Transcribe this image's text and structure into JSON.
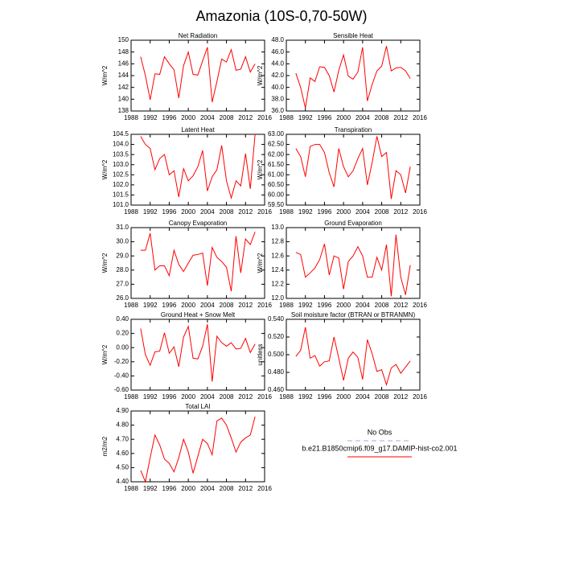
{
  "title": "Amazonia (10S-0,70-50W)",
  "legend": [
    {
      "name": "No Obs",
      "color": "#a8a8d0",
      "dash": true
    },
    {
      "name": "b.e21.B1850cmip6.f09_g17.DAMIP-hist-co2.001",
      "color": "#ff0000",
      "dash": false
    }
  ],
  "chart_data": [
    {
      "type": "line",
      "title": "Net Radiation",
      "y_label": "W/m^2",
      "color": "#ff0000",
      "x": [
        1990,
        1991,
        1992,
        1993,
        1994,
        1995,
        1996,
        1997,
        1998,
        1999,
        2000,
        2001,
        2002,
        2003,
        2004,
        2005,
        2006,
        2007,
        2008,
        2009,
        2010,
        2011,
        2012,
        2013,
        2014
      ],
      "values": [
        147.2,
        144,
        139.9,
        144.3,
        144.2,
        147.2,
        146,
        145,
        140.2,
        145.7,
        148,
        144.2,
        144.1,
        146.5,
        148.8,
        139.5,
        143,
        146.8,
        146.3,
        148.4,
        144.9,
        145.1,
        147.2,
        144.6,
        146
      ],
      "xlim": [
        1988,
        2016
      ],
      "xticks": [
        1988,
        1992,
        1996,
        2000,
        2004,
        2008,
        2012,
        2016
      ],
      "ylim": [
        138,
        150
      ],
      "yticks": [
        138,
        140,
        142,
        144,
        146,
        148,
        150
      ]
    },
    {
      "type": "line",
      "title": "Sensible Heat",
      "y_label": "W/m^2",
      "color": "#ff0000",
      "x": [
        1990,
        1991,
        1992,
        1993,
        1994,
        1995,
        1996,
        1997,
        1998,
        1999,
        2000,
        2001,
        2002,
        2003,
        2004,
        2005,
        2006,
        2007,
        2008,
        2009,
        2010,
        2011,
        2012,
        2013,
        2014
      ],
      "values": [
        42.4,
        40,
        36.5,
        41.6,
        41,
        43.5,
        43.4,
        42,
        39.2,
        42.9,
        45.5,
        41.9,
        41.4,
        42.6,
        46.8,
        37.7,
        40.5,
        42.8,
        43.6,
        47,
        42.8,
        43.3,
        43.4,
        42.8,
        41.5
      ],
      "xlim": [
        1988,
        2016
      ],
      "xticks": [
        1988,
        1992,
        1996,
        2000,
        2004,
        2008,
        2012,
        2016
      ],
      "ylim": [
        36,
        48
      ],
      "yticks": [
        {
          "value": 36,
          "label": "36.0"
        },
        {
          "value": 38,
          "label": "38.0"
        },
        {
          "value": 40,
          "label": "40.0"
        },
        {
          "value": 42,
          "label": "42.0"
        },
        {
          "value": 44,
          "label": "44.0"
        },
        {
          "value": 46,
          "label": "46.0"
        },
        {
          "value": 48,
          "label": "48.0"
        }
      ]
    },
    {
      "type": "line",
      "title": "Latent Heat",
      "y_label": "W/m^2",
      "color": "#ff0000",
      "x": [
        1990,
        1991,
        1992,
        1993,
        1994,
        1995,
        1996,
        1997,
        1998,
        1999,
        2000,
        2001,
        2002,
        2003,
        2004,
        2005,
        2006,
        2007,
        2008,
        2009,
        2010,
        2011,
        2012,
        2013,
        2014
      ],
      "values": [
        104.4,
        104,
        103.8,
        102.75,
        103.3,
        103.5,
        102.5,
        102.7,
        101.4,
        102.8,
        102.2,
        102.45,
        102.9,
        103.7,
        101.7,
        102.4,
        102.75,
        103.95,
        102.2,
        101.35,
        102.2,
        101.95,
        103.55,
        101.8,
        104.5
      ],
      "xlim": [
        1988,
        2016
      ],
      "xticks": [
        1988,
        1992,
        1996,
        2000,
        2004,
        2008,
        2012,
        2016
      ],
      "ylim": [
        101,
        104.5
      ],
      "yticks": [
        {
          "value": 101,
          "label": "101.0"
        },
        {
          "value": 101.5,
          "label": "101.5"
        },
        {
          "value": 102,
          "label": "102.0"
        },
        {
          "value": 102.5,
          "label": "102.5"
        },
        {
          "value": 103,
          "label": "103.0"
        },
        {
          "value": 103.5,
          "label": "103.5"
        },
        {
          "value": 104,
          "label": "104.0"
        },
        {
          "value": 104.5,
          "label": "104.5"
        }
      ]
    },
    {
      "type": "line",
      "title": "Transpiration",
      "y_label": "W/m^2",
      "color": "#ff0000",
      "x": [
        1990,
        1991,
        1992,
        1993,
        1994,
        1995,
        1996,
        1997,
        1998,
        1999,
        2000,
        2001,
        2002,
        2003,
        2004,
        2005,
        2006,
        2007,
        2008,
        2009,
        2010,
        2011,
        2012,
        2013,
        2014
      ],
      "values": [
        62.3,
        61.9,
        60.9,
        62.4,
        62.5,
        62.5,
        62.1,
        61.1,
        60.4,
        62.3,
        61.4,
        60.9,
        61.2,
        61.8,
        62.3,
        60.5,
        61.6,
        62.9,
        61.9,
        62.1,
        59.8,
        61.2,
        61,
        60.1,
        61.4
      ],
      "xlim": [
        1988,
        2016
      ],
      "xticks": [
        1988,
        1992,
        1996,
        2000,
        2004,
        2008,
        2012,
        2016
      ],
      "ylim": [
        59.5,
        63
      ],
      "yticks": [
        {
          "value": 59.5,
          "label": "59.50"
        },
        {
          "value": 60,
          "label": "60.00"
        },
        {
          "value": 60.5,
          "label": "60.50"
        },
        {
          "value": 61,
          "label": "61.00"
        },
        {
          "value": 61.5,
          "label": "61.50"
        },
        {
          "value": 62,
          "label": "62.00"
        },
        {
          "value": 62.5,
          "label": "62.50"
        },
        {
          "value": 63,
          "label": "63.00"
        }
      ]
    },
    {
      "type": "line",
      "title": "Canopy Evaporation",
      "y_label": "W/m^2",
      "color": "#ff0000",
      "x": [
        1990,
        1991,
        1992,
        1993,
        1994,
        1995,
        1996,
        1997,
        1998,
        1999,
        2000,
        2001,
        2002,
        2003,
        2004,
        2005,
        2006,
        2007,
        2008,
        2009,
        2010,
        2011,
        2012,
        2013,
        2014
      ],
      "values": [
        29.4,
        29.4,
        30.6,
        28,
        28.3,
        28.3,
        27.6,
        29.4,
        28.4,
        27.9,
        28.5,
        29.05,
        29.1,
        29.2,
        26.9,
        29.6,
        28.9,
        28.6,
        28.2,
        26.5,
        30.4,
        27.8,
        30.2,
        29.8,
        30.7
      ],
      "xlim": [
        1988,
        2016
      ],
      "xticks": [
        1988,
        1992,
        1996,
        2000,
        2004,
        2008,
        2012,
        2016
      ],
      "ylim": [
        26,
        31
      ],
      "yticks": [
        {
          "value": 26,
          "label": "26.0"
        },
        {
          "value": 27,
          "label": "27.0"
        },
        {
          "value": 28,
          "label": "28.0"
        },
        {
          "value": 29,
          "label": "29.0"
        },
        {
          "value": 30,
          "label": "30.0"
        },
        {
          "value": 31,
          "label": "31.0"
        }
      ]
    },
    {
      "type": "line",
      "title": "Ground Evaporation",
      "y_label": "W/m^2",
      "color": "#ff0000",
      "x": [
        1990,
        1991,
        1992,
        1993,
        1994,
        1995,
        1996,
        1997,
        1998,
        1999,
        2000,
        2001,
        2002,
        2003,
        2004,
        2005,
        2006,
        2007,
        2008,
        2009,
        2010,
        2011,
        2012,
        2013,
        2014
      ],
      "values": [
        12.65,
        12.62,
        12.3,
        12.36,
        12.43,
        12.55,
        12.77,
        12.33,
        12.6,
        12.57,
        12.13,
        12.52,
        12.6,
        12.73,
        12.6,
        12.3,
        12.3,
        12.58,
        12.4,
        12.76,
        12.03,
        12.9,
        12.3,
        12.05,
        12.47
      ],
      "xlim": [
        1988,
        2016
      ],
      "xticks": [
        1988,
        1992,
        1996,
        2000,
        2004,
        2008,
        2012,
        2016
      ],
      "ylim": [
        12,
        13
      ],
      "yticks": [
        {
          "value": 12,
          "label": "12.0"
        },
        {
          "value": 12.2,
          "label": "12.2"
        },
        {
          "value": 12.4,
          "label": "12.4"
        },
        {
          "value": 12.6,
          "label": "12.6"
        },
        {
          "value": 12.8,
          "label": "12.8"
        },
        {
          "value": 13,
          "label": "13.0"
        }
      ]
    },
    {
      "type": "line",
      "title": "Ground Heat + Snow Melt",
      "y_label": "W/m^2",
      "color": "#ff0000",
      "x": [
        1990,
        1991,
        1992,
        1993,
        1994,
        1995,
        1996,
        1997,
        1998,
        1999,
        2000,
        2001,
        2002,
        2003,
        2004,
        2005,
        2006,
        2007,
        2008,
        2009,
        2010,
        2011,
        2012,
        2013,
        2014
      ],
      "values": [
        0.27,
        -0.1,
        -0.25,
        -0.06,
        -0.05,
        0.21,
        -0.08,
        0.01,
        -0.27,
        0.15,
        0.3,
        -0.15,
        -0.16,
        0.02,
        0.33,
        -0.48,
        0.16,
        0.07,
        0.02,
        0.07,
        -0.02,
        -0.01,
        0.13,
        -0.07,
        0.05
      ],
      "xlim": [
        1988,
        2016
      ],
      "xticks": [
        1988,
        1992,
        1996,
        2000,
        2004,
        2008,
        2012,
        2016
      ],
      "ylim": [
        -0.6,
        0.4
      ],
      "yticks": [
        {
          "value": -0.6,
          "label": "-0.60"
        },
        {
          "value": -0.4,
          "label": "-0.40"
        },
        {
          "value": -0.2,
          "label": "-0.20"
        },
        {
          "value": 0,
          "label": "0.00"
        },
        {
          "value": 0.2,
          "label": "0.20"
        },
        {
          "value": 0.4,
          "label": "0.40"
        }
      ]
    },
    {
      "type": "line",
      "title": "Soil moisture factor (BTRAN or BTRANMN)",
      "y_label": "unitless",
      "color": "#ff0000",
      "x": [
        1990,
        1991,
        1992,
        1993,
        1994,
        1995,
        1996,
        1997,
        1998,
        1999,
        2000,
        2001,
        2002,
        2003,
        2004,
        2005,
        2006,
        2007,
        2008,
        2009,
        2010,
        2011,
        2012,
        2013,
        2014
      ],
      "values": [
        0.498,
        0.505,
        0.531,
        0.496,
        0.499,
        0.487,
        0.492,
        0.493,
        0.52,
        0.496,
        0.471,
        0.496,
        0.503,
        0.497,
        0.472,
        0.517,
        0.501,
        0.481,
        0.483,
        0.466,
        0.485,
        0.489,
        0.479,
        0.486,
        0.493
      ],
      "xlim": [
        1988,
        2016
      ],
      "xticks": [
        1988,
        1992,
        1996,
        2000,
        2004,
        2008,
        2012,
        2016
      ],
      "ylim": [
        0.46,
        0.54
      ],
      "yticks": [
        {
          "value": 0.46,
          "label": "0.460"
        },
        {
          "value": 0.48,
          "label": "0.480"
        },
        {
          "value": 0.5,
          "label": "0.500"
        },
        {
          "value": 0.52,
          "label": "0.520"
        },
        {
          "value": 0.54,
          "label": "0.540"
        }
      ]
    },
    {
      "type": "line",
      "title": "Total LAI",
      "y_label": "m2/m2",
      "color": "#ff0000",
      "x": [
        1990,
        1991,
        1992,
        1993,
        1994,
        1995,
        1996,
        1997,
        1998,
        1999,
        2000,
        2001,
        2002,
        2003,
        2004,
        2005,
        2006,
        2007,
        2008,
        2009,
        2010,
        2011,
        2012,
        2013,
        2014
      ],
      "values": [
        4.48,
        4.4,
        4.57,
        4.73,
        4.66,
        4.56,
        4.53,
        4.47,
        4.57,
        4.7,
        4.61,
        4.46,
        4.58,
        4.7,
        4.67,
        4.59,
        4.83,
        4.85,
        4.8,
        4.71,
        4.61,
        4.68,
        4.71,
        4.73,
        4.86
      ],
      "xlim": [
        1988,
        2016
      ],
      "xticks": [
        1988,
        1992,
        1996,
        2000,
        2004,
        2008,
        2012,
        2016
      ],
      "ylim": [
        4.4,
        4.9
      ],
      "yticks": [
        {
          "value": 4.4,
          "label": "4.40"
        },
        {
          "value": 4.5,
          "label": "4.50"
        },
        {
          "value": 4.6,
          "label": "4.60"
        },
        {
          "value": 4.7,
          "label": "4.70"
        },
        {
          "value": 4.8,
          "label": "4.80"
        },
        {
          "value": 4.9,
          "label": "4.90"
        }
      ]
    }
  ]
}
